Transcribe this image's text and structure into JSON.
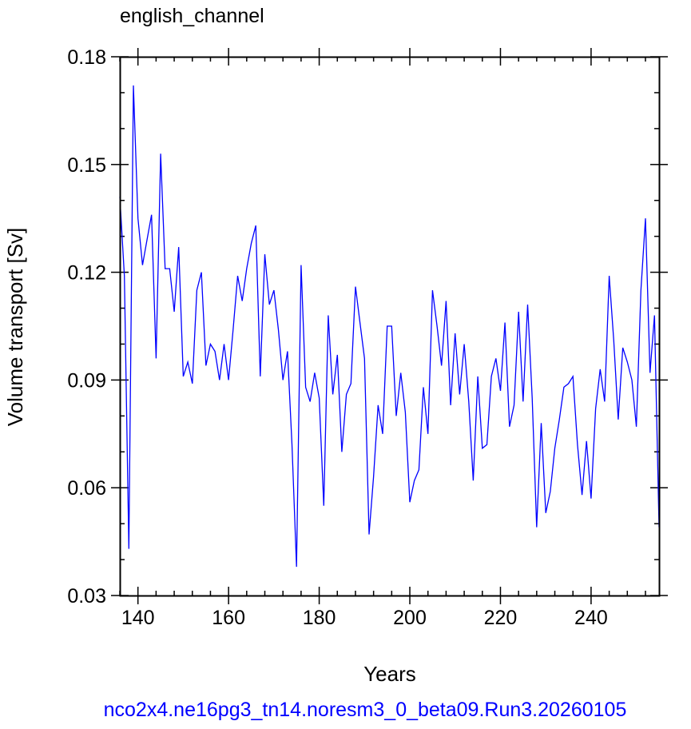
{
  "chart_data": {
    "type": "line",
    "title": "english_channel",
    "xlabel": "Years",
    "ylabel": "Volume transport [Sv]",
    "footer": "nco2x4.ne16pg3_tn14.noresm3_0_beta09.Run3.20260105",
    "xlim": [
      136,
      255
    ],
    "ylim": [
      0.03,
      0.18
    ],
    "x_ticks": [
      140,
      160,
      180,
      200,
      220,
      240
    ],
    "x_tick_labels": [
      "140",
      "160",
      "180",
      "200",
      "220",
      "240"
    ],
    "y_ticks": [
      0.03,
      0.06,
      0.09,
      0.12,
      0.15,
      0.18
    ],
    "y_tick_labels": [
      "0.03",
      "0.06",
      "0.09",
      "0.12",
      "0.15",
      "0.18"
    ],
    "grid": false,
    "series_color": "#0000ff",
    "series": [
      {
        "x": [
          136,
          137,
          138,
          139,
          140,
          141,
          142,
          143,
          144,
          145,
          146,
          147,
          148,
          149,
          150,
          151,
          152,
          153,
          154,
          155,
          156,
          157,
          158,
          159,
          160,
          161,
          162,
          163,
          164,
          165,
          166,
          167,
          168,
          169,
          170,
          171,
          172,
          173,
          174,
          175,
          176,
          177,
          178,
          179,
          180,
          181,
          182,
          183,
          184,
          185,
          186,
          187,
          188,
          189,
          190,
          191,
          192,
          193,
          194,
          195,
          196,
          197,
          198,
          199,
          200,
          201,
          202,
          203,
          204,
          205,
          206,
          207,
          208,
          209,
          210,
          211,
          212,
          213,
          214,
          215,
          216,
          217,
          218,
          219,
          220,
          221,
          222,
          223,
          224,
          225,
          226,
          227,
          228,
          229,
          230,
          231,
          232,
          233,
          234,
          235,
          236,
          237,
          238,
          239,
          240,
          241,
          242,
          243,
          244,
          245,
          246,
          247,
          248,
          249,
          250,
          251,
          252,
          253,
          254,
          255
        ],
        "values": [
          0.141,
          0.119,
          0.043,
          0.172,
          0.135,
          0.122,
          0.129,
          0.136,
          0.096,
          0.153,
          0.121,
          0.121,
          0.109,
          0.127,
          0.091,
          0.095,
          0.089,
          0.115,
          0.12,
          0.094,
          0.1,
          0.098,
          0.09,
          0.1,
          0.09,
          0.104,
          0.119,
          0.112,
          0.121,
          0.128,
          0.133,
          0.091,
          0.125,
          0.111,
          0.115,
          0.104,
          0.09,
          0.098,
          0.072,
          0.038,
          0.122,
          0.088,
          0.084,
          0.092,
          0.085,
          0.055,
          0.108,
          0.086,
          0.097,
          0.07,
          0.086,
          0.089,
          0.116,
          0.106,
          0.096,
          0.047,
          0.063,
          0.083,
          0.075,
          0.105,
          0.105,
          0.08,
          0.092,
          0.081,
          0.056,
          0.062,
          0.065,
          0.088,
          0.075,
          0.115,
          0.105,
          0.094,
          0.112,
          0.083,
          0.103,
          0.086,
          0.1,
          0.084,
          0.062,
          0.091,
          0.071,
          0.072,
          0.091,
          0.096,
          0.087,
          0.106,
          0.077,
          0.083,
          0.109,
          0.084,
          0.111,
          0.085,
          0.049,
          0.078,
          0.053,
          0.059,
          0.071,
          0.079,
          0.088,
          0.089,
          0.091,
          0.072,
          0.058,
          0.073,
          0.057,
          0.082,
          0.093,
          0.084,
          0.119,
          0.101,
          0.079,
          0.099,
          0.095,
          0.09,
          0.077,
          0.115,
          0.135,
          0.092,
          0.108,
          0.049
        ]
      }
    ]
  }
}
